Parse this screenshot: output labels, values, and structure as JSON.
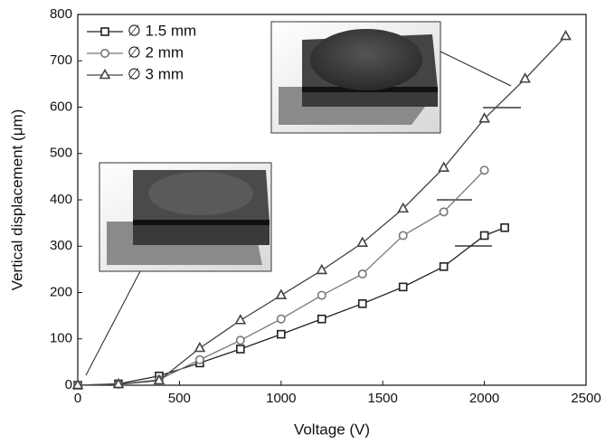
{
  "chart_data": {
    "type": "line",
    "xlabel": "Voltage (V)",
    "ylabel": "Vertical displacement (μm)",
    "xlim": [
      0,
      2500
    ],
    "xticks": [
      0,
      500,
      1000,
      1500,
      2000,
      2500
    ],
    "ylim": [
      0,
      800
    ],
    "yticks": [
      0,
      100,
      200,
      300,
      400,
      500,
      600,
      700,
      800
    ],
    "legend": "upper left",
    "series": [
      {
        "name": "∅ 1.5 mm",
        "color": "#222222",
        "marker": "square",
        "x": [
          0,
          200,
          400,
          600,
          800,
          1000,
          1200,
          1400,
          1600,
          1800,
          2000,
          2100
        ],
        "values": [
          0,
          3,
          20,
          48,
          78,
          110,
          143,
          176,
          212,
          256,
          323,
          340
        ]
      },
      {
        "name": "∅ 2 mm",
        "color": "#777777",
        "marker": "circle",
        "x": [
          0,
          200,
          400,
          600,
          800,
          1000,
          1200,
          1400,
          1600,
          1800,
          2000
        ],
        "values": [
          0,
          2,
          12,
          55,
          97,
          143,
          194,
          240,
          323,
          374,
          464
        ]
      },
      {
        "name": "∅ 3 mm",
        "color": "#444444",
        "marker": "triangle",
        "x": [
          0,
          200,
          400,
          600,
          800,
          1000,
          1200,
          1400,
          1600,
          1800,
          2000,
          2200,
          2400
        ],
        "values": [
          0,
          2,
          10,
          80,
          140,
          194,
          248,
          307,
          381,
          469,
          575,
          661,
          753
        ]
      }
    ]
  }
}
